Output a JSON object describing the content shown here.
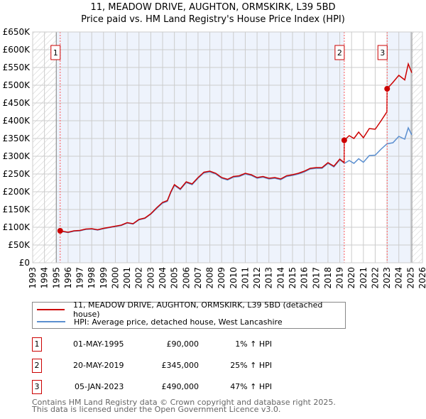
{
  "title": "11, MEADOW DRIVE, AUGHTON, ORMSKIRK, L39 5BD",
  "subtitle": "Price paid vs. HM Land Registry's House Price Index (HPI)",
  "chart_data": {
    "type": "line",
    "title": "11, MEADOW DRIVE, AUGHTON, ORMSKIRK, L39 5BD",
    "ylim": [
      0,
      650000
    ],
    "xlim": [
      1993,
      2026
    ],
    "yticks": [
      0,
      50000,
      100000,
      150000,
      200000,
      250000,
      300000,
      350000,
      400000,
      450000,
      500000,
      550000,
      600000,
      650000
    ],
    "ytick_labels": [
      "£0",
      "£50K",
      "£100K",
      "£150K",
      "£200K",
      "£250K",
      "£300K",
      "£350K",
      "£400K",
      "£450K",
      "£500K",
      "£550K",
      "£600K",
      "£650K"
    ],
    "xticks": [
      1993,
      1994,
      1995,
      1996,
      1997,
      1998,
      1999,
      2000,
      2001,
      2002,
      2003,
      2004,
      2005,
      2006,
      2007,
      2008,
      2009,
      2010,
      2011,
      2012,
      2013,
      2014,
      2015,
      2016,
      2017,
      2018,
      2019,
      2020,
      2021,
      2022,
      2023,
      2024,
      2025,
      2026
    ],
    "grid": true,
    "colors": {
      "property": "#cc0000",
      "hpi": "#5b8fd0",
      "shade": "#eef3fc"
    },
    "series": [
      {
        "name": "11, MEADOW DRIVE, AUGHTON, ORMSKIRK, L39 5BD (detached house)",
        "x": [
          1995.33,
          1996,
          1996.5,
          1997,
          1997.5,
          1998,
          1998.5,
          1999,
          1999.5,
          2000,
          2000.5,
          2001,
          2001.5,
          2002,
          2002.5,
          2003,
          2003.5,
          2004,
          2004.4,
          2004.7,
          2005,
          2005.5,
          2006,
          2006.5,
          2007,
          2007.5,
          2008,
          2008.5,
          2009,
          2009.5,
          2010,
          2010.5,
          2011,
          2011.5,
          2012,
          2012.5,
          2013,
          2013.5,
          2014,
          2014.5,
          2015,
          2015.5,
          2016,
          2016.5,
          2017,
          2017.5,
          2018,
          2018.5,
          2019,
          2019.37,
          2019.38,
          2019.8,
          2020.2,
          2020.6,
          2021,
          2021.5,
          2022,
          2022.5,
          2022.99,
          2023.01,
          2023.5,
          2024,
          2024.5,
          2024.8,
          2025.1
        ],
        "values": [
          90000,
          86000,
          90000,
          91000,
          95000,
          96000,
          93000,
          97000,
          100000,
          103000,
          106000,
          113000,
          110000,
          122000,
          126000,
          138000,
          155000,
          170000,
          175000,
          200000,
          220000,
          208000,
          228000,
          222000,
          240000,
          255000,
          258000,
          252000,
          240000,
          235000,
          243000,
          245000,
          252000,
          248000,
          240000,
          243000,
          238000,
          240000,
          236000,
          245000,
          248000,
          252000,
          258000,
          266000,
          268000,
          268000,
          282000,
          272000,
          292000,
          282000,
          345000,
          358000,
          350000,
          368000,
          352000,
          378000,
          376000,
          400000,
          425000,
          490000,
          508000,
          528000,
          515000,
          560000,
          535000
        ]
      },
      {
        "name": "HPI: Average price, detached house, West Lancashire",
        "x": [
          1995.33,
          1996,
          1996.5,
          1997,
          1997.5,
          1998,
          1998.5,
          1999,
          1999.5,
          2000,
          2000.5,
          2001,
          2001.5,
          2002,
          2002.5,
          2003,
          2003.5,
          2004,
          2004.4,
          2004.7,
          2005,
          2005.5,
          2006,
          2006.5,
          2007,
          2007.5,
          2008,
          2008.5,
          2009,
          2009.5,
          2010,
          2010.5,
          2011,
          2011.5,
          2012,
          2012.5,
          2013,
          2013.5,
          2014,
          2014.5,
          2015,
          2015.5,
          2016,
          2016.5,
          2017,
          2017.5,
          2018,
          2018.5,
          2019,
          2019.4,
          2019.8,
          2020.2,
          2020.6,
          2021,
          2021.5,
          2022,
          2022.5,
          2023,
          2023.5,
          2024,
          2024.5,
          2024.8,
          2025.1
        ],
        "values": [
          89000,
          85000,
          89000,
          90000,
          94000,
          95000,
          92000,
          96000,
          99000,
          102000,
          105000,
          112000,
          109000,
          121000,
          125000,
          137000,
          153000,
          168000,
          173000,
          198000,
          218000,
          206000,
          226000,
          220000,
          238000,
          253000,
          256000,
          250000,
          238000,
          233000,
          241000,
          243000,
          250000,
          246000,
          238000,
          241000,
          236000,
          238000,
          234000,
          243000,
          246000,
          250000,
          256000,
          264000,
          266000,
          266000,
          280000,
          270000,
          290000,
          280000,
          288000,
          280000,
          293000,
          283000,
          302000,
          303000,
          320000,
          335000,
          338000,
          356000,
          348000,
          380000,
          360000
        ]
      }
    ],
    "sales": [
      {
        "label": "1",
        "x": 1995.33,
        "value": 90000
      },
      {
        "label": "2",
        "x": 2019.38,
        "value": 345000
      },
      {
        "label": "3",
        "x": 2023.01,
        "value": 490000
      }
    ],
    "shaded_range": [
      1995,
      2025.1
    ]
  },
  "legend": {
    "property": "11, MEADOW DRIVE, AUGHTON, ORMSKIRK, L39 5BD (detached house)",
    "hpi": "HPI: Average price, detached house, West Lancashire"
  },
  "sales_table": [
    {
      "num": "1",
      "date": "01-MAY-1995",
      "price": "£90,000",
      "hpi": "1% ↑ HPI"
    },
    {
      "num": "2",
      "date": "20-MAY-2019",
      "price": "£345,000",
      "hpi": "25% ↑ HPI"
    },
    {
      "num": "3",
      "date": "05-JAN-2023",
      "price": "£490,000",
      "hpi": "47% ↑ HPI"
    }
  ],
  "footer": {
    "line1": "Contains HM Land Registry data © Crown copyright and database right 2025.",
    "line2": "This data is licensed under the Open Government Licence v3.0."
  }
}
